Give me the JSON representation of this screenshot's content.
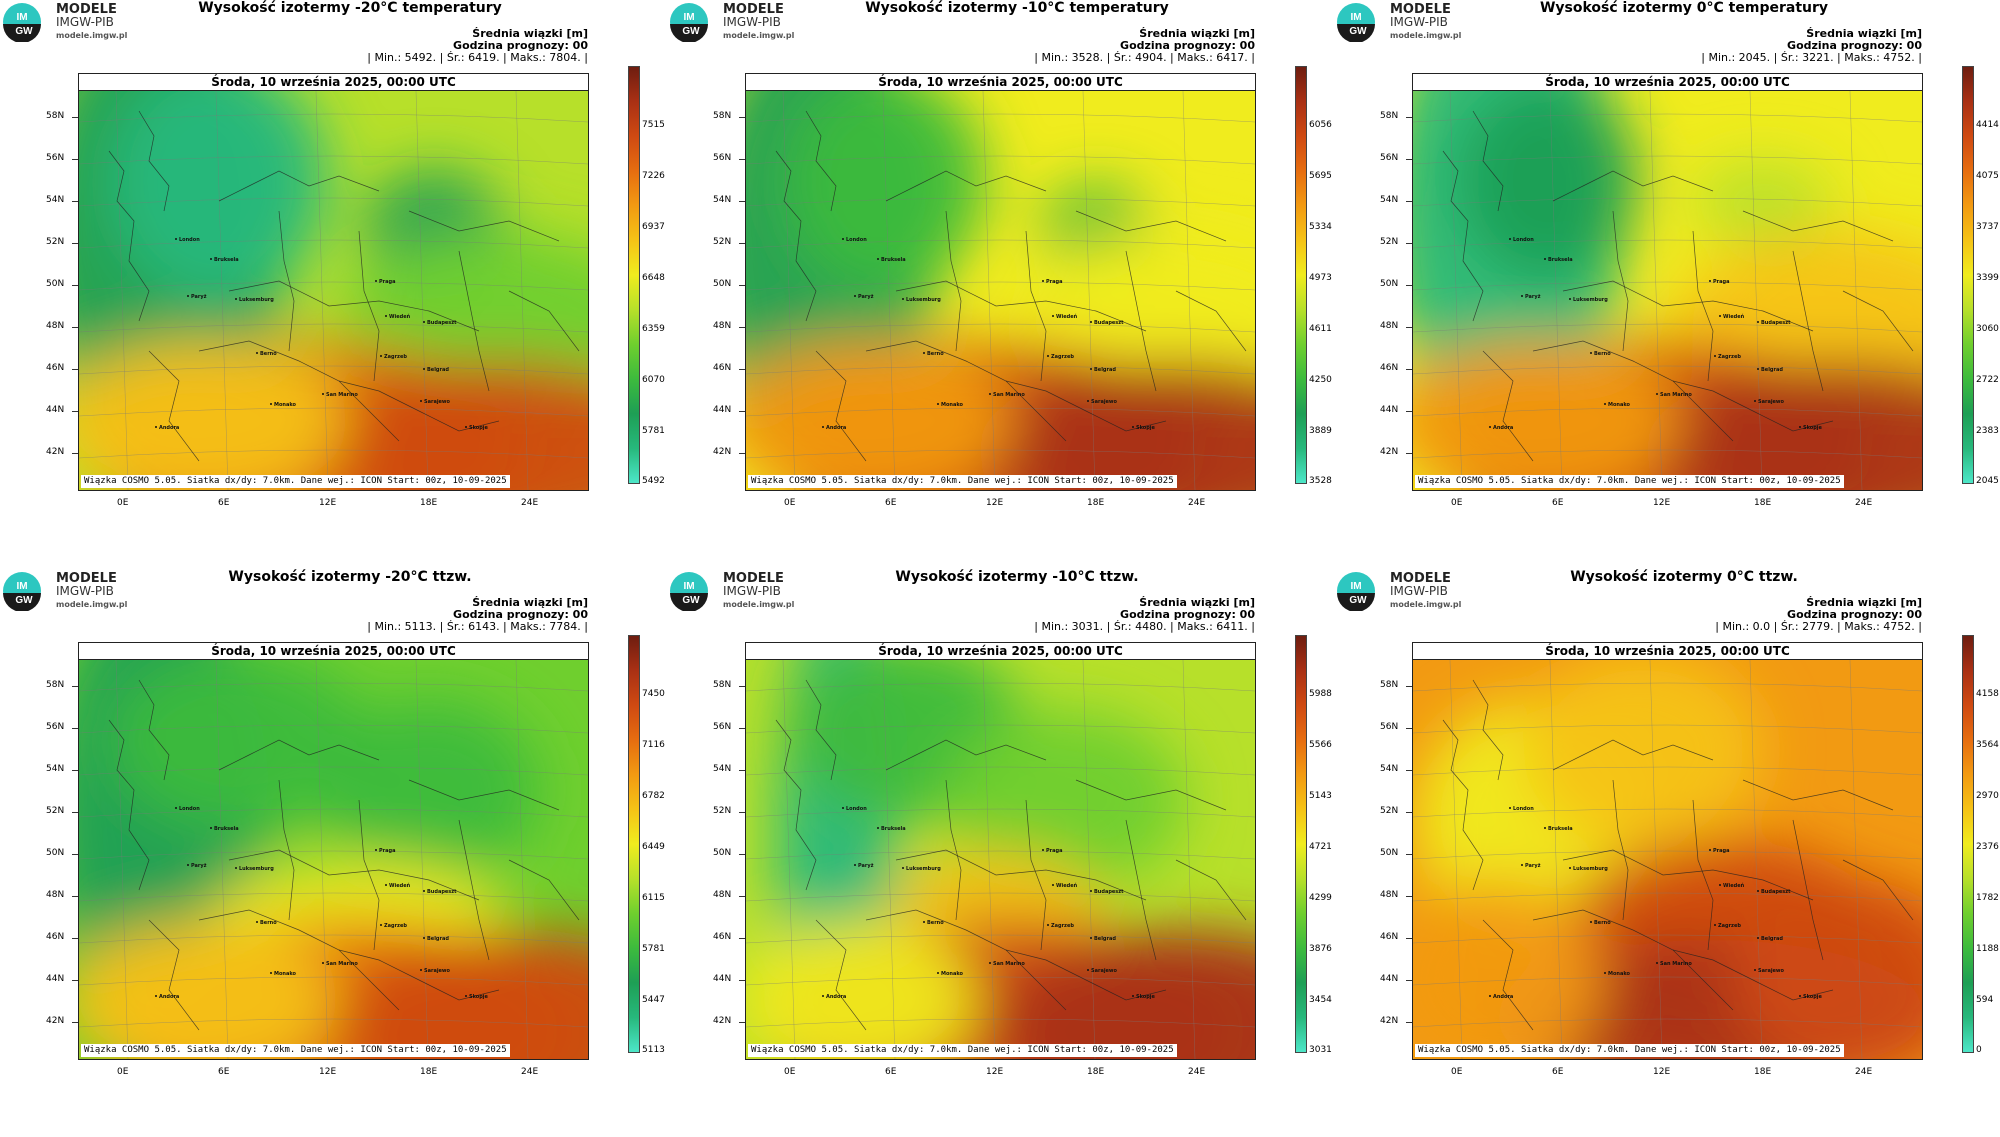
{
  "logo": {
    "line1": "MODELE",
    "line2": "IMGW-PIB",
    "line3": "modele.imgw.pl",
    "mark": "IM GW"
  },
  "date_label": "Środa, 10 września 2025, 00:00 UTC",
  "footer": "Wiązka COSMO 5.05. Siatka dx/dy: 7.0km. Dane wej.: ICON Start: 00z, 10-09-2025",
  "meta_line1": "Średnia wiązki [m]",
  "meta_line2": "Godzina prognozy: 00",
  "lat_labels": [
    "58N",
    "56N",
    "54N",
    "52N",
    "50N",
    "48N",
    "46N",
    "44N",
    "42N"
  ],
  "lon_labels": [
    "0E",
    "6E",
    "12E",
    "18E",
    "24E"
  ],
  "cities": [
    "London",
    "Bruksela",
    "Paryż",
    "Luksemburg",
    "Praga",
    "Wiedeń",
    "Budapeszt",
    "Berno",
    "Zagrzeb",
    "Belgrad",
    "San Marino",
    "Sarajewo",
    "Monako",
    "Skopje",
    "Andora"
  ],
  "colors": {
    "scale": [
      "#4de6c8",
      "#27b87c",
      "#1e9f55",
      "#3dbb3d",
      "#6fcf2e",
      "#b7e02a",
      "#f0ec1e",
      "#f5c316",
      "#f29a12",
      "#e66d10",
      "#cf4a12",
      "#a93014",
      "#6e1d10"
    ]
  },
  "panels": [
    {
      "title": "Wysokość izotermy -20°C temperatury",
      "stats": "| Min.:    5492. | Śr.:    6419. | Maks.:    7804. |",
      "cbar": [
        "7515",
        "7226",
        "6937",
        "6648",
        "6359",
        "6070",
        "5781",
        "5492"
      ]
    },
    {
      "title": "Wysokość izotermy -10°C temperatury",
      "stats": "| Min.:    3528. | Śr.:    4904. | Maks.:    6417. |",
      "cbar": [
        "6056",
        "5695",
        "5334",
        "4973",
        "4611",
        "4250",
        "3889",
        "3528"
      ]
    },
    {
      "title": "Wysokość izotermy 0°C temperatury",
      "stats": "| Min.:    2045. | Śr.:    3221. | Maks.:    4752. |",
      "cbar": [
        "4414",
        "4075",
        "3737",
        "3399",
        "3060",
        "2722",
        "2383",
        "2045"
      ]
    },
    {
      "title": "Wysokość izotermy -20°C ttzw.",
      "stats": "| Min.:    5113. | Śr.:    6143. | Maks.:    7784. |",
      "cbar": [
        "7450",
        "7116",
        "6782",
        "6449",
        "6115",
        "5781",
        "5447",
        "5113"
      ]
    },
    {
      "title": "Wysokość izotermy -10°C ttzw.",
      "stats": "| Min.:    3031. | Śr.:    4480. | Maks.:    6411. |",
      "cbar": [
        "5988",
        "5566",
        "5143",
        "4721",
        "4299",
        "3876",
        "3454",
        "3031"
      ]
    },
    {
      "title": "Wysokość izotermy 0°C ttzw.",
      "stats": "| Min.:      0.0 | Śr.:    2779. | Maks.:    4752. |",
      "cbar": [
        "4158",
        "3564",
        "2970",
        "2376",
        "1782",
        "1188",
        "594",
        "0"
      ]
    }
  ]
}
